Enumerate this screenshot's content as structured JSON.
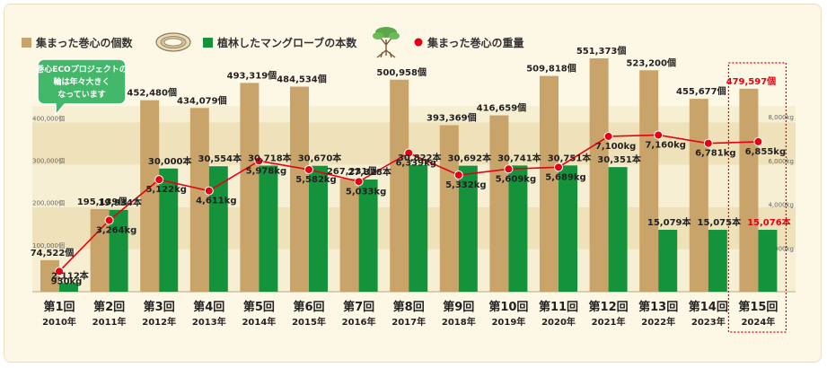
{
  "legend": {
    "items": [
      {
        "label": "集まった巻心の個数",
        "color": "#c9a46a"
      },
      {
        "label": "植林したマングローブの本数",
        "color": "#14923c"
      },
      {
        "label": "集まった巻心の重量",
        "color": "#e60012"
      }
    ]
  },
  "bubble": {
    "lines": [
      "巻心ECOプロジェクトの",
      "輪は年々大きく",
      "なっています"
    ]
  },
  "chart_data": {
    "type": "bar",
    "categories": [
      "第1回",
      "第2回",
      "第3回",
      "第4回",
      "第5回",
      "第6回",
      "第7回",
      "第8回",
      "第9回",
      "第10回",
      "第11回",
      "第12回",
      "第13回",
      "第14回",
      "第15回"
    ],
    "years": [
      "2010年",
      "2011年",
      "2012年",
      "2013年",
      "2014年",
      "2015年",
      "2016年",
      "2017年",
      "2018年",
      "2019年",
      "2020年",
      "2021年",
      "2022年",
      "2023年",
      "2024年"
    ],
    "series": [
      {
        "name": "集まった巻心の個数",
        "values": [
          74522,
          195139,
          452480,
          434079,
          493319,
          484534,
          267231,
          500958,
          393369,
          416659,
          509818,
          551373,
          523200,
          455677,
          479597
        ],
        "labels": [
          "74,522個",
          "195,139個",
          "452,480個",
          "434,079個",
          "493,319個",
          "484,534個",
          "267,231個",
          "500,958個",
          "393,369個",
          "416,659個",
          "509,818個",
          "551,373個",
          "523,200個",
          "455,677個",
          "479,597個"
        ]
      },
      {
        "name": "植林したマングローブの本数",
        "values": [
          2112,
          19934,
          30000,
          30554,
          30718,
          30670,
          27328,
          30822,
          30692,
          30741,
          30751,
          30351,
          15079,
          15075,
          15076
        ],
        "labels": [
          "2,112本",
          "19,934本",
          "30,000本",
          "30,554本",
          "30,718本",
          "30,670本",
          "27,328本",
          "30,822本",
          "30,692本",
          "30,741本",
          "30,751本",
          "30,351本",
          "15,079本",
          "15,075本",
          "15,076本"
        ]
      },
      {
        "name": "集まった巻心の重量",
        "values": [
          930,
          3264,
          5122,
          4611,
          5978,
          5582,
          5033,
          6339,
          5332,
          5609,
          5689,
          7100,
          7160,
          6781,
          6855
        ],
        "labels": [
          "930kg",
          "3,264kg",
          "5,122kg",
          "4,611kg",
          "5,978kg",
          "5,582kg",
          "5,033kg",
          "6,339kg",
          "5,332kg",
          "5,609kg",
          "5,689kg",
          "7,100kg",
          "7,160kg",
          "6,781kg",
          "6,855kg"
        ]
      }
    ],
    "left_axis": {
      "ticks": [
        100000,
        200000,
        300000,
        400000
      ],
      "labels": [
        "100,000個",
        "200,000個",
        "300,000個",
        "400,000個"
      ]
    },
    "right_axis": {
      "ticks": [
        2000,
        4000,
        6000,
        8000
      ],
      "labels": [
        "2,000kg",
        "4,000kg",
        "6,000kg",
        "8,000kg"
      ]
    },
    "highlight_index": 14,
    "colors": {
      "count": "#c9a46a",
      "trees": "#14923c",
      "weight": "#e60012",
      "highlight_text": "#e60012"
    }
  }
}
